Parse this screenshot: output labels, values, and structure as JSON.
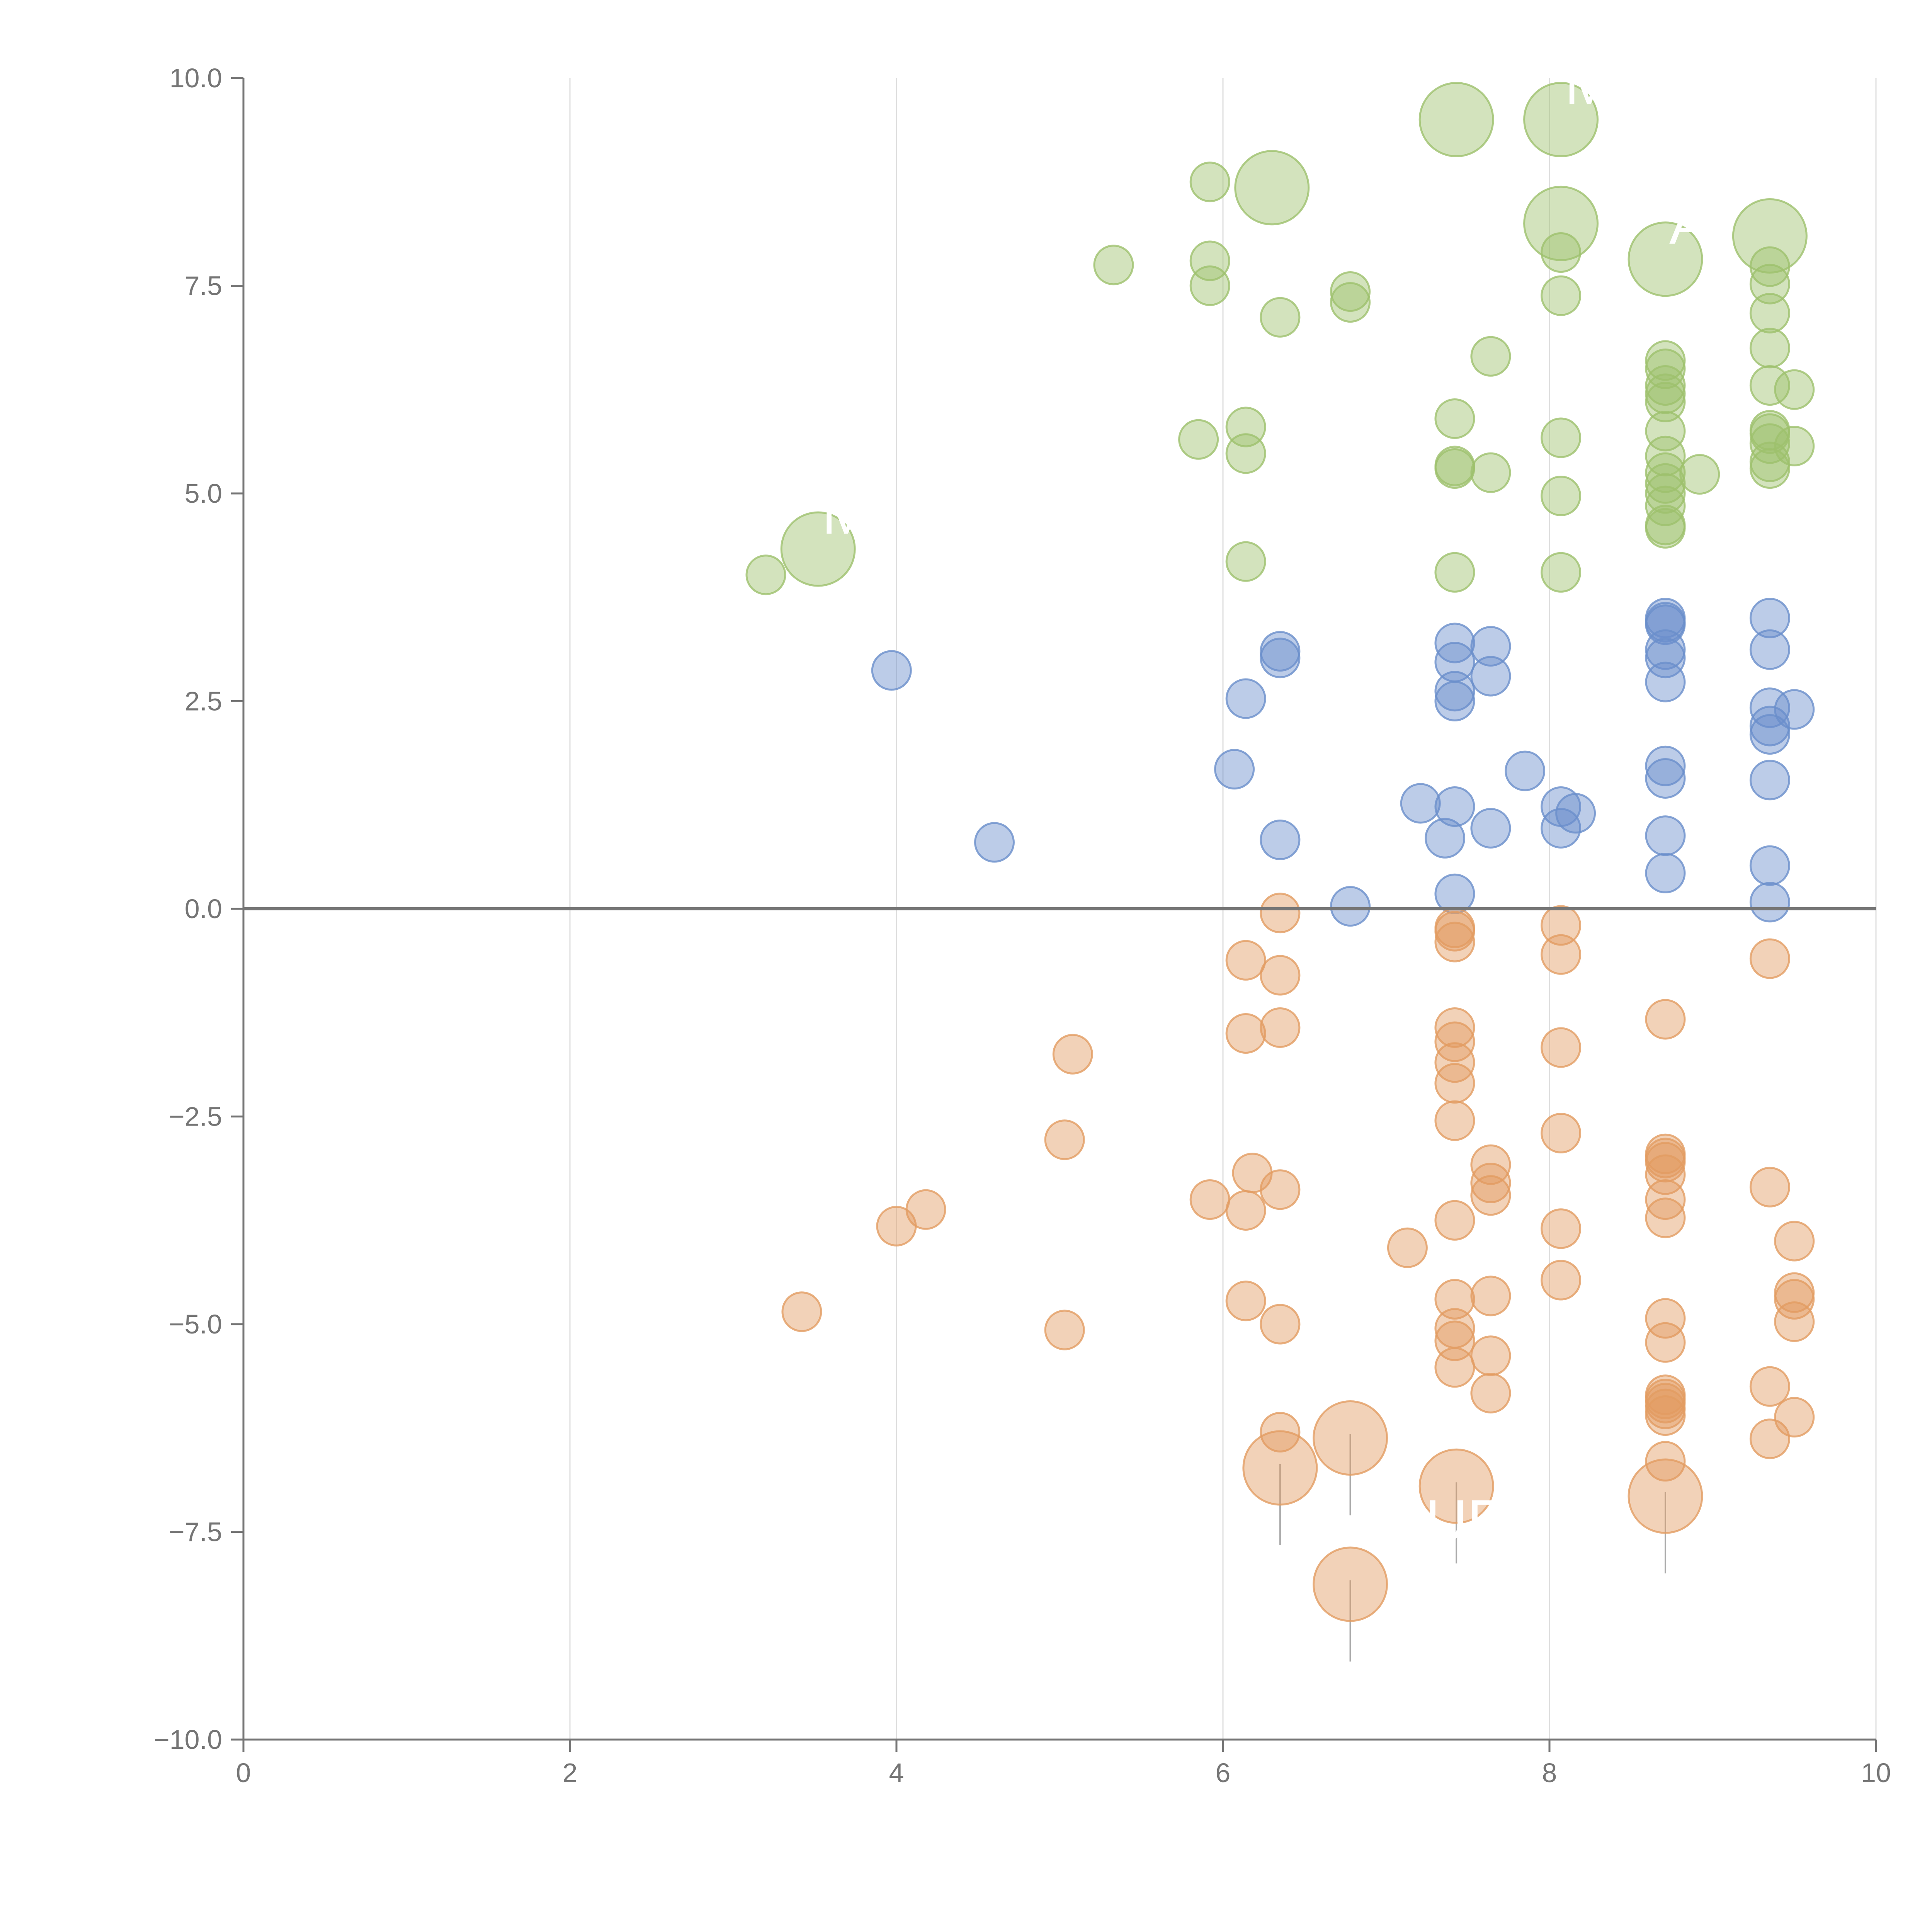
{
  "chart_data": {
    "type": "scatter",
    "title": "",
    "xlabel": "",
    "ylabel": "",
    "xlim": [
      0,
      10
    ],
    "ylim": [
      -10,
      10
    ],
    "grid": "vertical",
    "baseline": 0,
    "x_ticks": [
      0,
      2,
      4,
      6,
      8,
      10
    ],
    "y_ticks": [
      10,
      7.5,
      5,
      2.5,
      0,
      -2.5,
      -5,
      -7.5,
      -10
    ],
    "x_tick_labels": [
      "0",
      "2",
      "4",
      "6",
      "8",
      "10"
    ],
    "y_tick_labels": [
      "10.0",
      "7.5",
      "5.0",
      "2.5",
      "0.0",
      "−2.5",
      "−5.0",
      "−7.5",
      "−10.0"
    ],
    "colors": {
      "green": "#9dc16d",
      "blue": "#6a8fcb",
      "orange": "#e29c61",
      "axis": "#757575",
      "grid": "#dddddd",
      "leader": "#aaaaaa"
    },
    "series": [
      {
        "name": "green",
        "color": "#9dc16d",
        "points": [
          {
            "x": 3.2,
            "y": 4.02
          },
          {
            "x": 5.33,
            "y": 7.75
          },
          {
            "x": 5.85,
            "y": 5.65
          },
          {
            "x": 5.92,
            "y": 8.75
          },
          {
            "x": 5.92,
            "y": 7.8
          },
          {
            "x": 5.92,
            "y": 7.5
          },
          {
            "x": 6.14,
            "y": 5.8
          },
          {
            "x": 6.14,
            "y": 5.48
          },
          {
            "x": 6.14,
            "y": 4.18
          },
          {
            "x": 6.35,
            "y": 7.12
          },
          {
            "x": 6.78,
            "y": 7.43
          },
          {
            "x": 6.78,
            "y": 7.3
          },
          {
            "x": 7.42,
            "y": 5.9
          },
          {
            "x": 7.42,
            "y": 5.33
          },
          {
            "x": 7.42,
            "y": 5.3
          },
          {
            "x": 7.42,
            "y": 4.05
          },
          {
            "x": 7.64,
            "y": 6.65
          },
          {
            "x": 7.64,
            "y": 5.25
          },
          {
            "x": 8.07,
            "y": 7.9
          },
          {
            "x": 8.07,
            "y": 7.38
          },
          {
            "x": 8.07,
            "y": 5.67
          },
          {
            "x": 8.07,
            "y": 4.97
          },
          {
            "x": 8.07,
            "y": 4.05
          },
          {
            "x": 8.71,
            "y": 6.6
          },
          {
            "x": 8.71,
            "y": 6.5
          },
          {
            "x": 8.71,
            "y": 6.3
          },
          {
            "x": 8.71,
            "y": 6.2
          },
          {
            "x": 8.71,
            "y": 6.1
          },
          {
            "x": 8.71,
            "y": 5.75
          },
          {
            "x": 8.71,
            "y": 5.45
          },
          {
            "x": 8.71,
            "y": 5.25
          },
          {
            "x": 8.71,
            "y": 5.12
          },
          {
            "x": 8.71,
            "y": 5.0
          },
          {
            "x": 8.71,
            "y": 4.85
          },
          {
            "x": 8.71,
            "y": 4.62
          },
          {
            "x": 8.71,
            "y": 4.58
          },
          {
            "x": 8.92,
            "y": 5.23
          },
          {
            "x": 9.35,
            "y": 7.73
          },
          {
            "x": 9.35,
            "y": 7.52
          },
          {
            "x": 9.35,
            "y": 7.17
          },
          {
            "x": 9.35,
            "y": 6.75
          },
          {
            "x": 9.35,
            "y": 6.3
          },
          {
            "x": 9.35,
            "y": 5.76
          },
          {
            "x": 9.35,
            "y": 5.72
          },
          {
            "x": 9.35,
            "y": 5.6
          },
          {
            "x": 9.35,
            "y": 5.38
          },
          {
            "x": 9.35,
            "y": 5.3
          },
          {
            "x": 9.5,
            "y": 6.25
          },
          {
            "x": 9.5,
            "y": 5.57
          }
        ],
        "bubbles": [
          {
            "x": 3.52,
            "y": 4.33,
            "label": "M"
          },
          {
            "x": 6.3,
            "y": 8.68,
            "label": ""
          },
          {
            "x": 7.43,
            "y": 9.5,
            "label": ""
          },
          {
            "x": 8.07,
            "y": 9.5,
            "label": "M"
          },
          {
            "x": 8.07,
            "y": 8.25,
            "label": ""
          },
          {
            "x": 8.71,
            "y": 7.82,
            "label": "A"
          },
          {
            "x": 9.35,
            "y": 8.1,
            "label": ""
          }
        ]
      },
      {
        "name": "blue",
        "color": "#6a8fcb",
        "points": [
          {
            "x": 3.97,
            "y": 2.87
          },
          {
            "x": 4.6,
            "y": 0.8
          },
          {
            "x": 6.07,
            "y": 1.68
          },
          {
            "x": 6.14,
            "y": 2.53
          },
          {
            "x": 6.35,
            "y": 3.1
          },
          {
            "x": 6.35,
            "y": 3.02
          },
          {
            "x": 6.35,
            "y": 0.83
          },
          {
            "x": 6.78,
            "y": 0.03
          },
          {
            "x": 7.21,
            "y": 1.27
          },
          {
            "x": 7.36,
            "y": 0.85
          },
          {
            "x": 7.42,
            "y": 3.2
          },
          {
            "x": 7.42,
            "y": 2.97
          },
          {
            "x": 7.42,
            "y": 2.62
          },
          {
            "x": 7.42,
            "y": 2.5
          },
          {
            "x": 7.42,
            "y": 1.23
          },
          {
            "x": 7.42,
            "y": 0.18
          },
          {
            "x": 7.64,
            "y": 3.16
          },
          {
            "x": 7.64,
            "y": 2.8
          },
          {
            "x": 7.64,
            "y": 0.97
          },
          {
            "x": 7.85,
            "y": 1.66
          },
          {
            "x": 8.07,
            "y": 1.23
          },
          {
            "x": 8.07,
            "y": 0.97
          },
          {
            "x": 8.16,
            "y": 1.15
          },
          {
            "x": 8.71,
            "y": 3.5
          },
          {
            "x": 8.71,
            "y": 3.45
          },
          {
            "x": 8.71,
            "y": 3.42
          },
          {
            "x": 8.71,
            "y": 3.12
          },
          {
            "x": 8.71,
            "y": 3.02
          },
          {
            "x": 8.71,
            "y": 2.73
          },
          {
            "x": 8.71,
            "y": 1.72
          },
          {
            "x": 8.71,
            "y": 1.57
          },
          {
            "x": 8.71,
            "y": 0.88
          },
          {
            "x": 8.71,
            "y": 0.43
          },
          {
            "x": 9.35,
            "y": 3.5
          },
          {
            "x": 9.35,
            "y": 3.12
          },
          {
            "x": 9.35,
            "y": 2.42
          },
          {
            "x": 9.35,
            "y": 2.2
          },
          {
            "x": 9.35,
            "y": 2.1
          },
          {
            "x": 9.35,
            "y": 1.55
          },
          {
            "x": 9.35,
            "y": 0.52
          },
          {
            "x": 9.35,
            "y": 0.08
          },
          {
            "x": 9.5,
            "y": 2.4
          }
        ],
        "bubbles": []
      },
      {
        "name": "orange",
        "color": "#e29c61",
        "points": [
          {
            "x": 3.42,
            "y": -4.85
          },
          {
            "x": 4.0,
            "y": -3.82
          },
          {
            "x": 4.18,
            "y": -3.62
          },
          {
            "x": 5.03,
            "y": -2.78
          },
          {
            "x": 5.03,
            "y": -5.07
          },
          {
            "x": 5.08,
            "y": -1.75
          },
          {
            "x": 5.92,
            "y": -3.5
          },
          {
            "x": 6.14,
            "y": -0.62
          },
          {
            "x": 6.14,
            "y": -1.5
          },
          {
            "x": 6.14,
            "y": -3.63
          },
          {
            "x": 6.14,
            "y": -4.72
          },
          {
            "x": 6.18,
            "y": -3.18
          },
          {
            "x": 6.35,
            "y": -0.05
          },
          {
            "x": 6.35,
            "y": -0.8
          },
          {
            "x": 6.35,
            "y": -1.43
          },
          {
            "x": 6.35,
            "y": -3.38
          },
          {
            "x": 6.35,
            "y": -5.0
          },
          {
            "x": 6.35,
            "y": -6.3
          },
          {
            "x": 7.13,
            "y": -4.08
          },
          {
            "x": 7.42,
            "y": -0.23
          },
          {
            "x": 7.42,
            "y": -0.27
          },
          {
            "x": 7.42,
            "y": -0.4
          },
          {
            "x": 7.42,
            "y": -1.43
          },
          {
            "x": 7.42,
            "y": -1.6
          },
          {
            "x": 7.42,
            "y": -1.85
          },
          {
            "x": 7.42,
            "y": -2.1
          },
          {
            "x": 7.42,
            "y": -2.55
          },
          {
            "x": 7.42,
            "y": -3.75
          },
          {
            "x": 7.42,
            "y": -4.7
          },
          {
            "x": 7.42,
            "y": -5.05
          },
          {
            "x": 7.42,
            "y": -5.2
          },
          {
            "x": 7.42,
            "y": -5.52
          },
          {
            "x": 7.64,
            "y": -3.08
          },
          {
            "x": 7.64,
            "y": -3.3
          },
          {
            "x": 7.64,
            "y": -3.45
          },
          {
            "x": 7.64,
            "y": -4.66
          },
          {
            "x": 7.64,
            "y": -5.38
          },
          {
            "x": 7.64,
            "y": -5.83
          },
          {
            "x": 8.07,
            "y": -0.2
          },
          {
            "x": 8.07,
            "y": -0.55
          },
          {
            "x": 8.07,
            "y": -1.67
          },
          {
            "x": 8.07,
            "y": -2.7
          },
          {
            "x": 8.07,
            "y": -3.85
          },
          {
            "x": 8.07,
            "y": -4.47
          },
          {
            "x": 8.71,
            "y": -1.33
          },
          {
            "x": 8.71,
            "y": -2.95
          },
          {
            "x": 8.71,
            "y": -3.0
          },
          {
            "x": 8.71,
            "y": -3.05
          },
          {
            "x": 8.71,
            "y": -3.2
          },
          {
            "x": 8.71,
            "y": -3.5
          },
          {
            "x": 8.71,
            "y": -3.72
          },
          {
            "x": 8.71,
            "y": -4.93
          },
          {
            "x": 8.71,
            "y": -5.22
          },
          {
            "x": 8.71,
            "y": -5.85
          },
          {
            "x": 8.71,
            "y": -5.9
          },
          {
            "x": 8.71,
            "y": -5.95
          },
          {
            "x": 8.71,
            "y": -6.02
          },
          {
            "x": 8.71,
            "y": -6.1
          },
          {
            "x": 8.71,
            "y": -6.65
          },
          {
            "x": 9.35,
            "y": -0.6
          },
          {
            "x": 9.35,
            "y": -3.35
          },
          {
            "x": 9.35,
            "y": -5.75
          },
          {
            "x": 9.35,
            "y": -6.38
          },
          {
            "x": 9.5,
            "y": -4.0
          },
          {
            "x": 9.5,
            "y": -4.62
          },
          {
            "x": 9.5,
            "y": -4.7
          },
          {
            "x": 9.5,
            "y": -4.97
          },
          {
            "x": 9.5,
            "y": -6.12
          }
        ],
        "bubbles": [
          {
            "x": 6.35,
            "y": -6.73,
            "label": ""
          },
          {
            "x": 6.78,
            "y": -6.37,
            "label": ""
          },
          {
            "x": 6.78,
            "y": -8.13,
            "label": ""
          },
          {
            "x": 7.43,
            "y": -6.95,
            "label": "UE"
          },
          {
            "x": 8.71,
            "y": -7.07,
            "label": ""
          }
        ]
      }
    ]
  }
}
